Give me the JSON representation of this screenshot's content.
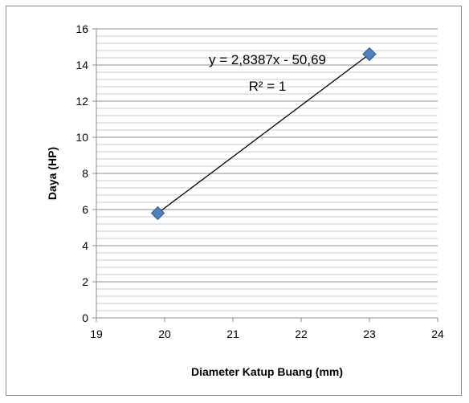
{
  "chart_data": {
    "type": "scatter",
    "title": "",
    "xlabel": "Diameter Katup Buang (mm)",
    "ylabel": "Daya (HP)",
    "xlim": [
      19,
      24
    ],
    "ylim": [
      0,
      16
    ],
    "x_ticks": [
      19,
      20,
      21,
      22,
      23,
      24
    ],
    "y_ticks": [
      0,
      2,
      4,
      6,
      8,
      10,
      12,
      14,
      16
    ],
    "y_minor_gridlines_per_major": 5,
    "grid": true,
    "legend": "none",
    "marker_color": "#4F81BD",
    "series": [
      {
        "points": [
          {
            "x": 19.9,
            "y": 5.8
          },
          {
            "x": 23.0,
            "y": 14.6
          }
        ]
      }
    ],
    "trendline": {
      "type": "linear",
      "x_range": [
        19.9,
        23.0
      ],
      "slope": 2.8387,
      "intercept": -50.69
    },
    "annotations": {
      "equation": "y = 2,8387x - 50,69",
      "r_squared": "R² = 1"
    }
  }
}
